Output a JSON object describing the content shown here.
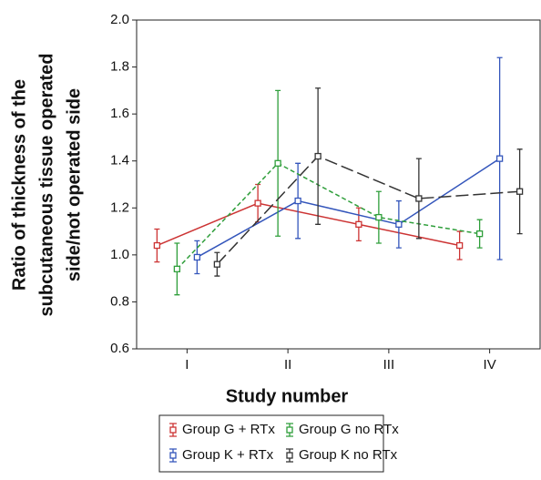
{
  "chart_data": {
    "type": "line",
    "ylabel": [
      "Ratio of thickness of the",
      "subcutaneous tissue operated",
      "side/not operated side"
    ],
    "xlabel": "Study number",
    "categories": [
      "I",
      "II",
      "III",
      "IV"
    ],
    "ylim": [
      0.6,
      2.0
    ],
    "yticks": [
      0.6,
      0.8,
      {
        "value": 1.0,
        "label": "1.0"
      },
      1.2,
      1.4,
      1.6,
      1.8,
      {
        "value": 2.0,
        "label": "2.0"
      }
    ],
    "series": [
      {
        "name": "Group G + RTx",
        "color": "#cc3333",
        "dash": "solid",
        "values": [
          1.04,
          1.22,
          1.13,
          1.04
        ],
        "errors": [
          0.07,
          0.08,
          0.07,
          0.06
        ]
      },
      {
        "name": "Group K + RTx",
        "color": "#3355bb",
        "dash": "solid",
        "values": [
          0.99,
          1.23,
          1.13,
          1.41
        ],
        "errors": [
          0.07,
          0.16,
          0.1,
          0.43
        ]
      },
      {
        "name": "Group G no RTx",
        "color": "#2e9e3a",
        "dash": "dotted",
        "values": [
          0.94,
          1.39,
          1.16,
          1.09
        ],
        "errors": [
          0.11,
          0.31,
          0.11,
          0.06
        ]
      },
      {
        "name": "Group K no RTx",
        "color": "#333333",
        "dash": "dashed",
        "values": [
          0.96,
          1.42,
          1.24,
          1.27
        ],
        "errors": [
          0.05,
          0.29,
          0.17,
          0.18
        ]
      }
    ]
  }
}
